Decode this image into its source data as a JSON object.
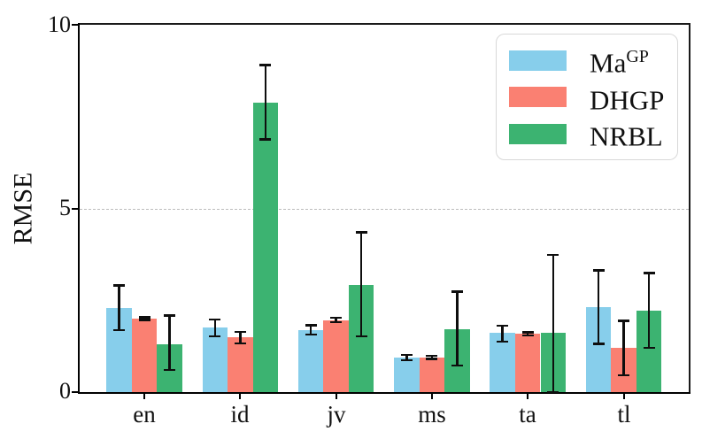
{
  "chart_data": {
    "type": "bar",
    "title": "",
    "xlabel": "",
    "ylabel": "RMSE",
    "ylim": [
      0,
      10
    ],
    "yticks": [
      "0",
      "5",
      "10"
    ],
    "ytick_values": [
      0,
      5,
      10
    ],
    "grid": {
      "y_values": [
        5
      ],
      "style": "dashed",
      "color": "#bdbdbd"
    },
    "legend_position": "upper right",
    "categories": [
      "en",
      "id",
      "jv",
      "ms",
      "ta",
      "tl"
    ],
    "error_bar_color": "#0e0e0e",
    "series": [
      {
        "name": "MaGP",
        "label_base": "Ma",
        "label_sup": "GP",
        "color": "#87CEEB",
        "values": [
          2.28,
          1.76,
          1.69,
          0.94,
          1.62,
          2.32
        ],
        "err_low": [
          1.69,
          1.52,
          1.57,
          0.87,
          1.38,
          1.32
        ],
        "err_high": [
          2.9,
          1.98,
          1.82,
          1.01,
          1.81,
          3.32
        ]
      },
      {
        "name": "DHGP",
        "label_base": "DHGP",
        "label_sup": "",
        "color": "#FA8072",
        "values": [
          2.0,
          1.5,
          1.96,
          0.94,
          1.59,
          1.21
        ],
        "err_low": [
          1.96,
          1.33,
          1.9,
          0.9,
          1.54,
          0.46
        ],
        "err_high": [
          2.04,
          1.64,
          2.02,
          0.99,
          1.63,
          1.94
        ]
      },
      {
        "name": "NRBL",
        "label_base": "NRBL",
        "label_sup": "",
        "color": "#3CB371",
        "values": [
          1.3,
          7.87,
          2.92,
          1.71,
          1.62,
          2.22
        ],
        "err_low": [
          0.6,
          6.88,
          1.52,
          0.72,
          0.0,
          1.2
        ],
        "err_high": [
          2.08,
          8.9,
          4.35,
          2.74,
          3.74,
          3.24
        ]
      }
    ]
  }
}
